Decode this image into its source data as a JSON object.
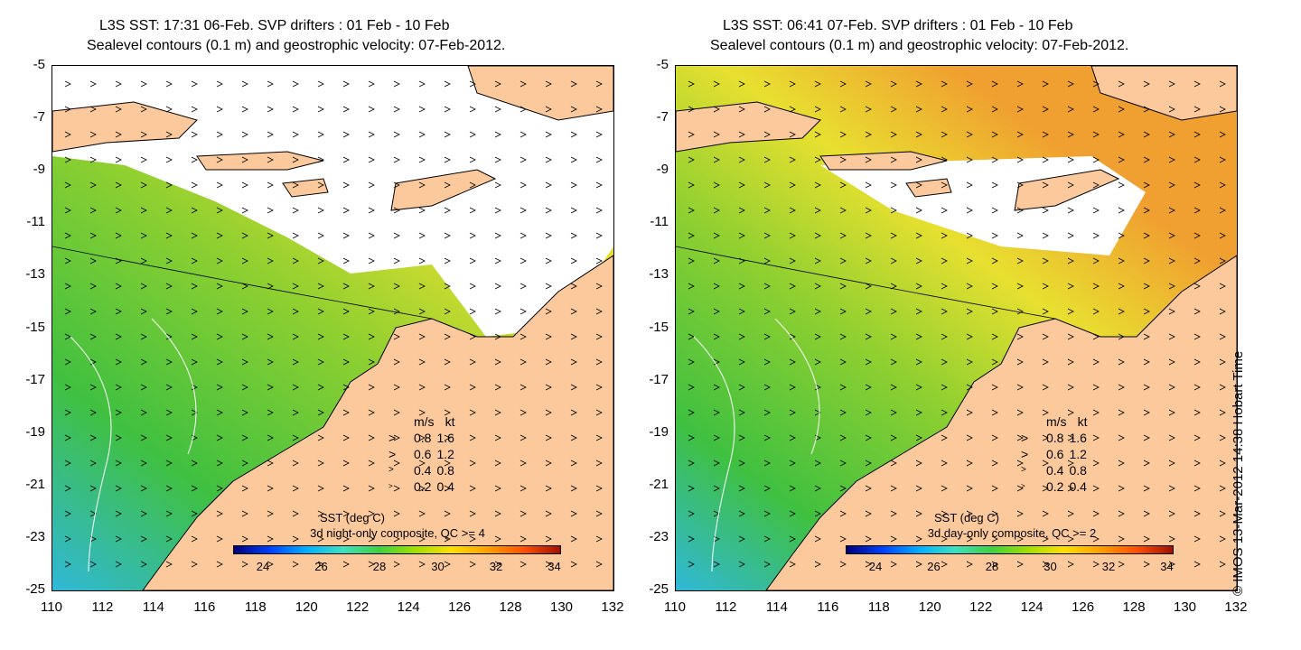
{
  "left": {
    "title_line1": "L3S SST: 17:31 06-Feb. SVP drifters : 01 Feb - 10 Feb",
    "title_line2": "Sealevel contours (0.1 m) and geostrophic velocity: 07-Feb-2012.",
    "colorbar_title": "SST (deg C)",
    "colorbar_subtitle": "3d night-only composite, QC >= 4",
    "ocean_style": "left"
  },
  "right": {
    "title_line1": "L3S SST: 06:41 07-Feb. SVP drifters : 01 Feb - 10 Feb",
    "title_line2": "Sealevel contours (0.1 m) and geostrophic velocity: 07-Feb-2012.",
    "colorbar_title": "SST (deg C)",
    "colorbar_subtitle": "3d day-only composite, QC >= 2",
    "ocean_style": "right"
  },
  "y_ticks": [
    "-5",
    "-7",
    "-9",
    "-11",
    "-13",
    "-15",
    "-17",
    "-19",
    "-21",
    "-23",
    "-25"
  ],
  "x_ticks": [
    "110",
    "112",
    "114",
    "116",
    "118",
    "120",
    "122",
    "124",
    "126",
    "128",
    "130",
    "132"
  ],
  "colorbar_ticks": [
    "24",
    "26",
    "28",
    "30",
    "32",
    "34"
  ],
  "velocity_legend": {
    "header": [
      "m/s",
      "kt"
    ],
    "rows": [
      [
        "0.8",
        "1.6"
      ],
      [
        "0.6",
        "1.2"
      ],
      [
        "0.4",
        "0.8"
      ],
      [
        "0.2",
        "0.4"
      ]
    ]
  },
  "credit": "© IMOS 13-Mar-2012 14:38 Hobart Time",
  "colors": {
    "land": "#fbc99b",
    "cloud": "#ffffff",
    "warm_shelf": "#e8e030",
    "mid": "#90d030",
    "cool": "#40c040",
    "cold": "#30b8d8",
    "hot": "#f0a030"
  }
}
